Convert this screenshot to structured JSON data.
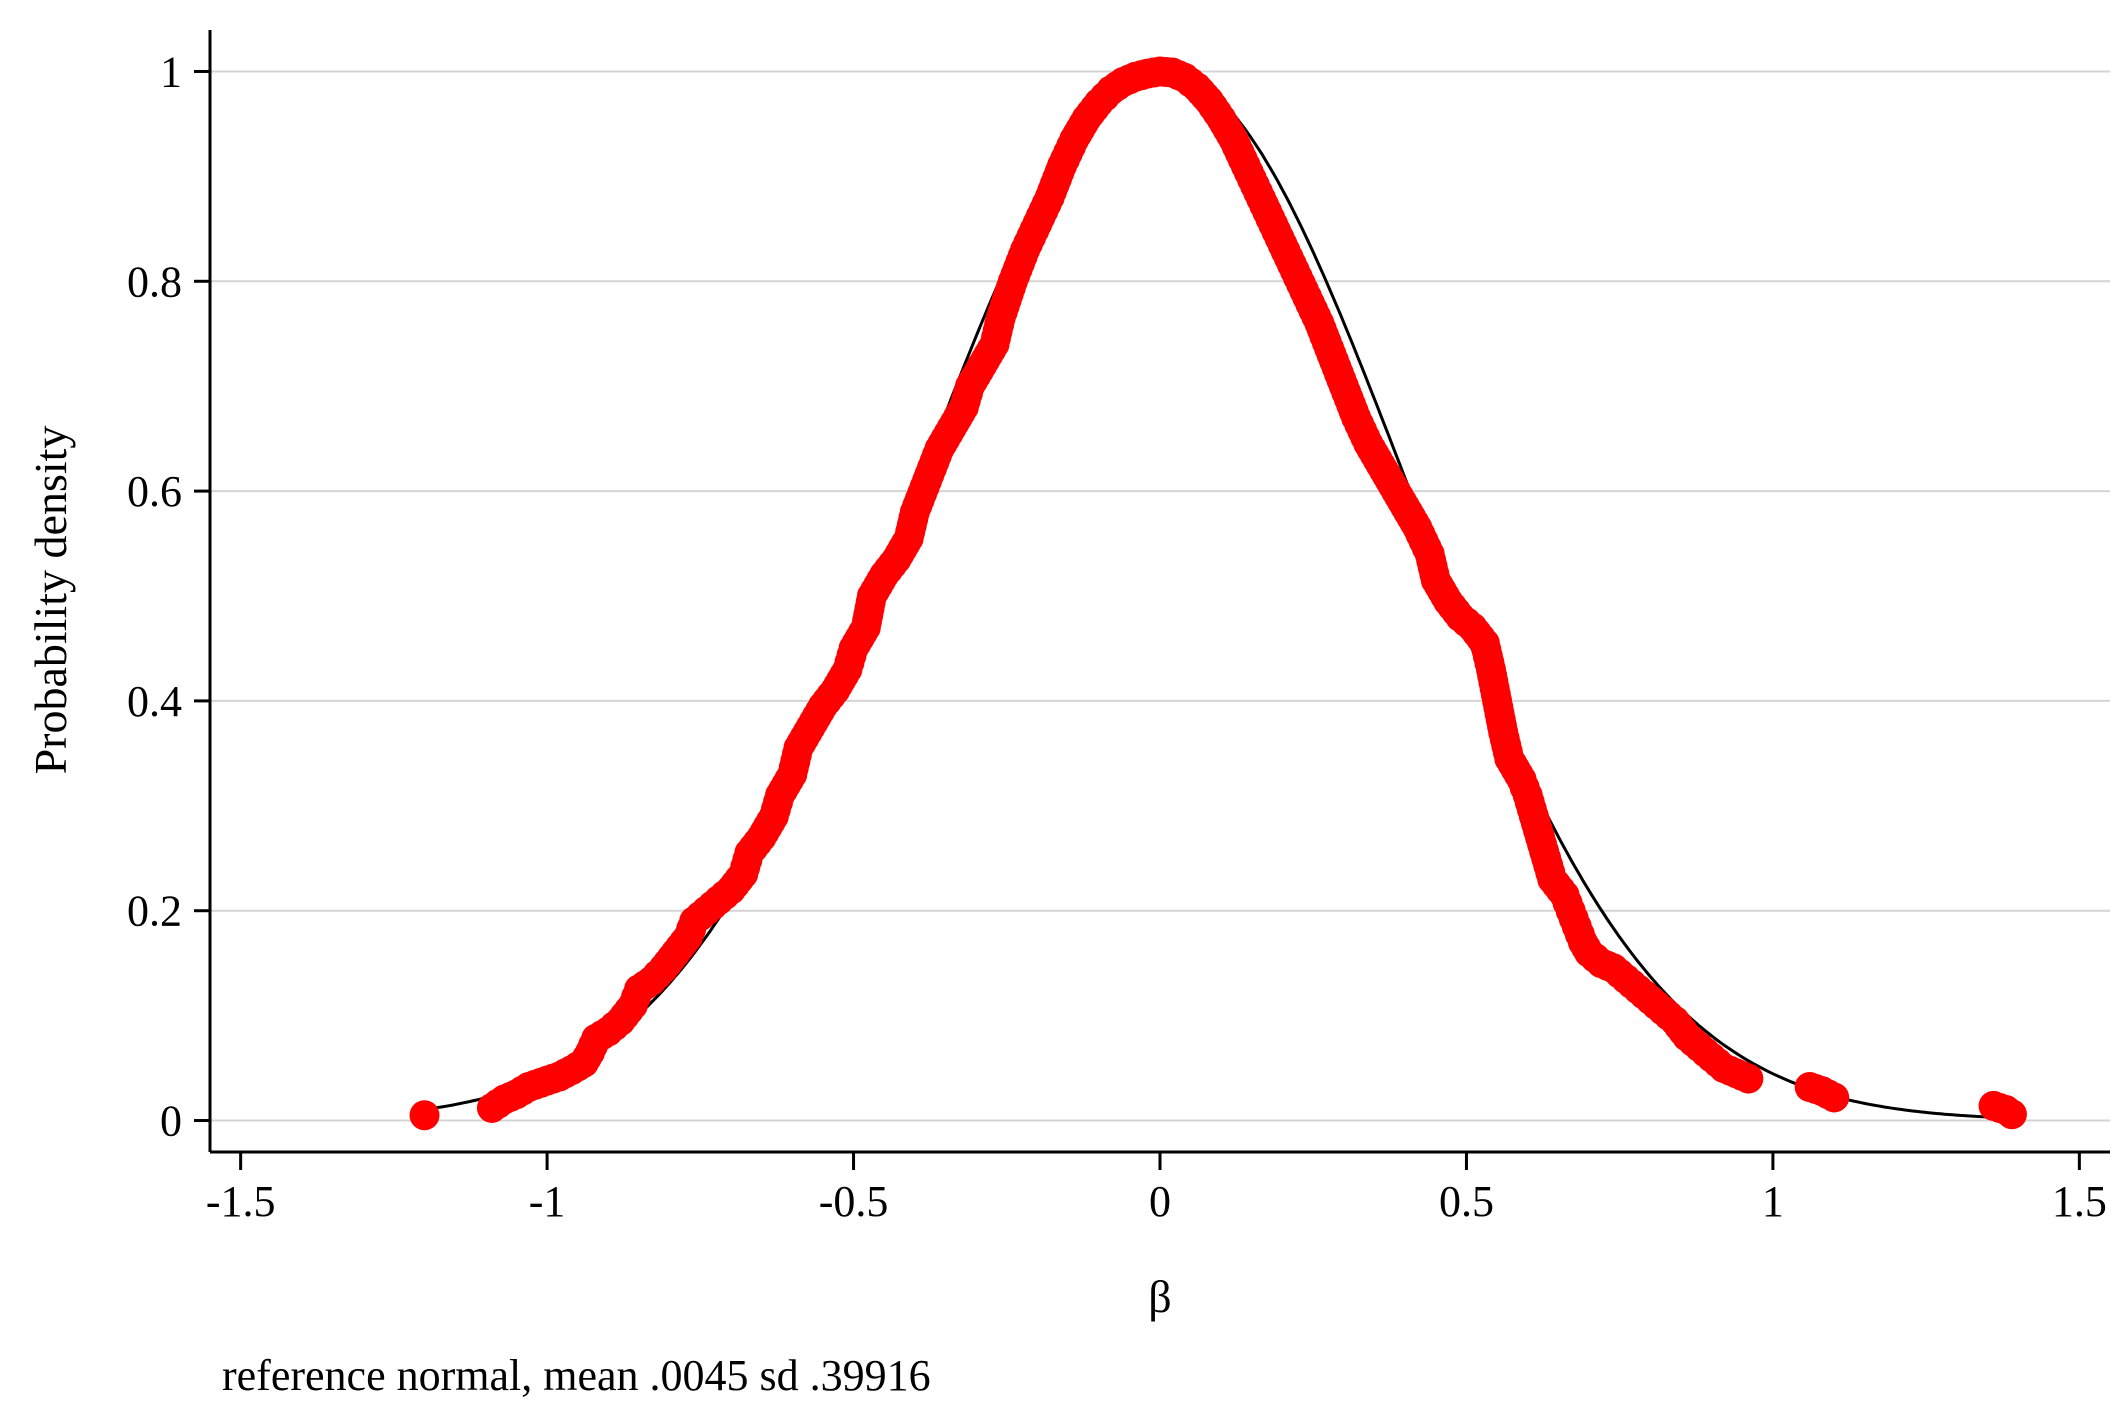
{
  "chart_data": {
    "type": "scatter",
    "xlabel": "β",
    "ylabel": "Probability density",
    "note": "reference normal, mean .0045 sd .39916",
    "xlim": [
      -1.55,
      1.55
    ],
    "ylim": [
      -0.03,
      1.03
    ],
    "x_ticks": [
      -1.5,
      -1,
      -0.5,
      0,
      0.5,
      1,
      1.5
    ],
    "x_tick_labels": [
      "-1.5",
      "-1",
      "-0.5",
      "0",
      "0.5",
      "1",
      "1.5"
    ],
    "y_ticks": [
      0,
      0.2,
      0.4,
      0.6,
      0.8,
      1
    ],
    "y_tick_labels": [
      "0",
      "0.2",
      "0.4",
      "0.6",
      "0.8",
      "1"
    ],
    "grid": "horizontal",
    "reference_normal": {
      "mean": 0.0045,
      "sd": 0.39916
    },
    "series": [
      {
        "color": "#ff0000",
        "marker": "circle",
        "points": [
          [
            -1.2,
            0.005
          ],
          [
            -1.09,
            0.012
          ],
          [
            -1.07,
            0.02
          ],
          [
            -1.05,
            0.025
          ],
          [
            -1.03,
            0.032
          ],
          [
            -1.0,
            0.038
          ],
          [
            -0.98,
            0.042
          ],
          [
            -0.96,
            0.048
          ],
          [
            -0.94,
            0.055
          ],
          [
            -0.93,
            0.065
          ],
          [
            -0.92,
            0.078
          ],
          [
            -0.9,
            0.085
          ],
          [
            -0.88,
            0.095
          ],
          [
            -0.86,
            0.11
          ],
          [
            -0.85,
            0.125
          ],
          [
            -0.83,
            0.133
          ],
          [
            -0.81,
            0.145
          ],
          [
            -0.79,
            0.16
          ],
          [
            -0.77,
            0.175
          ],
          [
            -0.76,
            0.19
          ],
          [
            -0.74,
            0.2
          ],
          [
            -0.72,
            0.21
          ],
          [
            -0.7,
            0.22
          ],
          [
            -0.68,
            0.235
          ],
          [
            -0.67,
            0.255
          ],
          [
            -0.65,
            0.27
          ],
          [
            -0.63,
            0.29
          ],
          [
            -0.62,
            0.31
          ],
          [
            -0.6,
            0.33
          ],
          [
            -0.59,
            0.355
          ],
          [
            -0.57,
            0.375
          ],
          [
            -0.55,
            0.395
          ],
          [
            -0.53,
            0.41
          ],
          [
            -0.51,
            0.43
          ],
          [
            -0.5,
            0.45
          ],
          [
            -0.48,
            0.47
          ],
          [
            -0.47,
            0.5
          ],
          [
            -0.45,
            0.52
          ],
          [
            -0.43,
            0.535
          ],
          [
            -0.41,
            0.555
          ],
          [
            -0.4,
            0.58
          ],
          [
            -0.38,
            0.61
          ],
          [
            -0.36,
            0.64
          ],
          [
            -0.34,
            0.66
          ],
          [
            -0.32,
            0.68
          ],
          [
            -0.31,
            0.7
          ],
          [
            -0.29,
            0.72
          ],
          [
            -0.27,
            0.74
          ],
          [
            -0.26,
            0.765
          ],
          [
            -0.24,
            0.8
          ],
          [
            -0.22,
            0.83
          ],
          [
            -0.2,
            0.855
          ],
          [
            -0.18,
            0.88
          ],
          [
            -0.16,
            0.91
          ],
          [
            -0.14,
            0.935
          ],
          [
            -0.12,
            0.955
          ],
          [
            -0.1,
            0.97
          ],
          [
            -0.08,
            0.982
          ],
          [
            -0.06,
            0.99
          ],
          [
            -0.04,
            0.995
          ],
          [
            -0.02,
            0.998
          ],
          [
            0.0,
            1.0
          ],
          [
            0.02,
            0.999
          ],
          [
            0.04,
            0.994
          ],
          [
            0.06,
            0.985
          ],
          [
            0.08,
            0.972
          ],
          [
            0.1,
            0.955
          ],
          [
            0.12,
            0.935
          ],
          [
            0.14,
            0.91
          ],
          [
            0.16,
            0.885
          ],
          [
            0.18,
            0.86
          ],
          [
            0.2,
            0.835
          ],
          [
            0.22,
            0.81
          ],
          [
            0.24,
            0.785
          ],
          [
            0.26,
            0.76
          ],
          [
            0.28,
            0.73
          ],
          [
            0.3,
            0.7
          ],
          [
            0.32,
            0.67
          ],
          [
            0.34,
            0.645
          ],
          [
            0.36,
            0.625
          ],
          [
            0.38,
            0.605
          ],
          [
            0.4,
            0.585
          ],
          [
            0.42,
            0.565
          ],
          [
            0.44,
            0.54
          ],
          [
            0.45,
            0.515
          ],
          [
            0.47,
            0.495
          ],
          [
            0.49,
            0.48
          ],
          [
            0.51,
            0.47
          ],
          [
            0.53,
            0.455
          ],
          [
            0.54,
            0.43
          ],
          [
            0.55,
            0.4
          ],
          [
            0.56,
            0.37
          ],
          [
            0.57,
            0.345
          ],
          [
            0.59,
            0.325
          ],
          [
            0.6,
            0.31
          ],
          [
            0.61,
            0.29
          ],
          [
            0.62,
            0.27
          ],
          [
            0.63,
            0.25
          ],
          [
            0.64,
            0.23
          ],
          [
            0.66,
            0.215
          ],
          [
            0.67,
            0.2
          ],
          [
            0.68,
            0.185
          ],
          [
            0.69,
            0.17
          ],
          [
            0.7,
            0.16
          ],
          [
            0.72,
            0.15
          ],
          [
            0.74,
            0.145
          ],
          [
            0.76,
            0.135
          ],
          [
            0.78,
            0.125
          ],
          [
            0.8,
            0.115
          ],
          [
            0.82,
            0.105
          ],
          [
            0.84,
            0.095
          ],
          [
            0.86,
            0.08
          ],
          [
            0.88,
            0.07
          ],
          [
            0.9,
            0.06
          ],
          [
            0.92,
            0.05
          ],
          [
            0.94,
            0.045
          ],
          [
            0.96,
            0.04
          ],
          [
            1.06,
            0.032
          ],
          [
            1.08,
            0.028
          ],
          [
            1.1,
            0.022
          ],
          [
            1.36,
            0.014
          ],
          [
            1.38,
            0.01
          ],
          [
            1.39,
            0.006
          ]
        ]
      }
    ]
  }
}
